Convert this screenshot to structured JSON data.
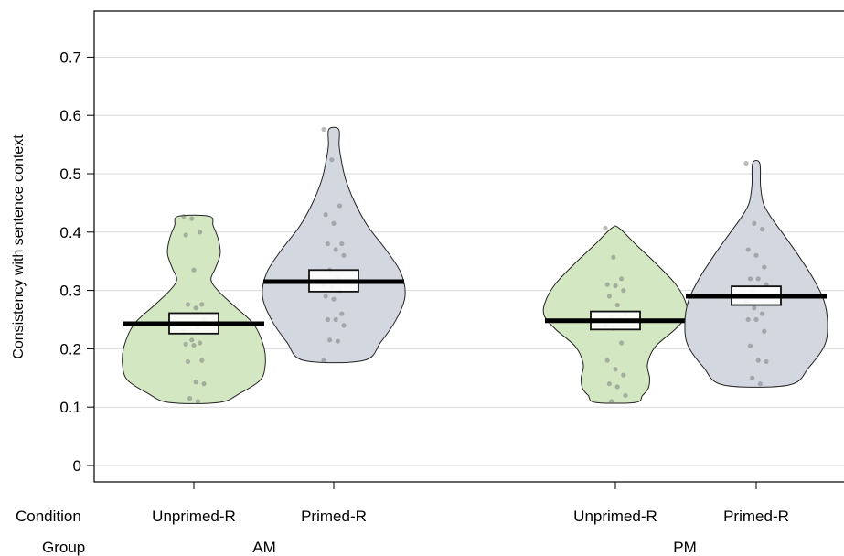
{
  "chart_data": {
    "type": "violin",
    "ylabel": "Consistency with sentence context",
    "ylim": [
      0,
      0.75
    ],
    "yticks": [
      "0",
      "0.1",
      "0.2",
      "0.3",
      "0.4",
      "0.5",
      "0.6",
      "0.7"
    ],
    "grid": "horizontal",
    "row_labels": {
      "condition": "Condition",
      "group": "Group"
    },
    "groups": [
      {
        "name": "AM",
        "conditions": [
          {
            "label": "Unprimed-R",
            "color": "#d4e7c3",
            "mean": 0.243,
            "ci_low": 0.226,
            "ci_high": 0.261,
            "min": 0.108,
            "max": 0.427,
            "points": [
              0.427,
              0.423,
              0.4,
              0.395,
              0.335,
              0.276,
              0.276,
              0.27,
              0.25,
              0.243,
              0.237,
              0.23,
              0.215,
              0.21,
              0.208,
              0.206,
              0.18,
              0.178,
              0.143,
              0.14,
              0.115,
              0.11
            ]
          },
          {
            "label": "Primed-R",
            "color": "#d3d8e0",
            "mean": 0.315,
            "ci_low": 0.298,
            "ci_high": 0.335,
            "min": 0.18,
            "max": 0.576,
            "points": [
              0.576,
              0.524,
              0.445,
              0.43,
              0.415,
              0.38,
              0.38,
              0.37,
              0.36,
              0.335,
              0.32,
              0.31,
              0.305,
              0.3,
              0.29,
              0.285,
              0.26,
              0.25,
              0.25,
              0.24,
              0.215,
              0.213,
              0.18
            ]
          }
        ]
      },
      {
        "name": "PM",
        "conditions": [
          {
            "label": "Unprimed-R",
            "color": "#d4e7c3",
            "mean": 0.248,
            "ci_low": 0.233,
            "ci_high": 0.264,
            "min": 0.108,
            "max": 0.407,
            "points": [
              0.407,
              0.357,
              0.32,
              0.31,
              0.308,
              0.3,
              0.29,
              0.275,
              0.26,
              0.255,
              0.25,
              0.24,
              0.235,
              0.21,
              0.18,
              0.165,
              0.155,
              0.14,
              0.135,
              0.12,
              0.11
            ]
          },
          {
            "label": "Primed-R",
            "color": "#d3d8e0",
            "mean": 0.29,
            "ci_low": 0.275,
            "ci_high": 0.307,
            "min": 0.138,
            "max": 0.518,
            "points": [
              0.518,
              0.415,
              0.405,
              0.37,
              0.36,
              0.34,
              0.32,
              0.32,
              0.31,
              0.3,
              0.29,
              0.28,
              0.27,
              0.26,
              0.25,
              0.25,
              0.23,
              0.205,
              0.18,
              0.178,
              0.15,
              0.14
            ]
          }
        ]
      }
    ]
  }
}
